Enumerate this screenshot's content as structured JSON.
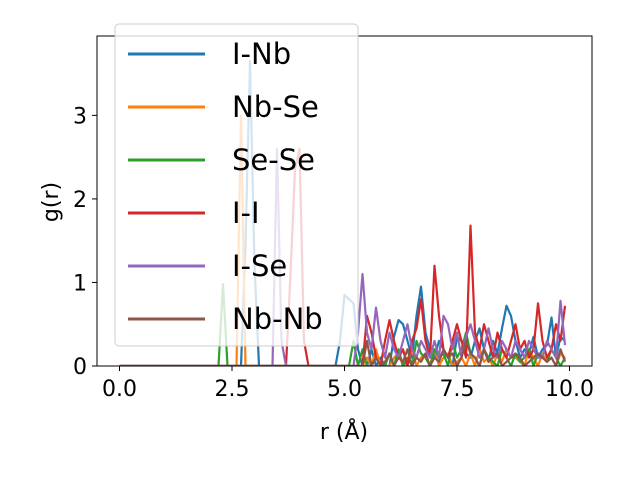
{
  "chart_data": {
    "type": "line",
    "title": "",
    "xlabel": "r (Å)",
    "ylabel": "g(r)",
    "xlim": [
      -0.5,
      10.5
    ],
    "ylim": [
      0,
      3.95
    ],
    "xticks": [
      "0.0",
      "2.5",
      "5.0",
      "7.5",
      "10.0"
    ],
    "xtick_values": [
      0,
      2.5,
      5,
      7.5,
      10
    ],
    "yticks": [
      "0",
      "1",
      "2",
      "3"
    ],
    "ytick_values": [
      0,
      1,
      2,
      3
    ],
    "grid": false,
    "legend_placement": "upper-left",
    "x": [
      0.0,
      0.1,
      0.2,
      0.3,
      0.4,
      0.5,
      0.6,
      0.7,
      0.8,
      0.9,
      1.0,
      1.1,
      1.2,
      1.3,
      1.4,
      1.5,
      1.6,
      1.7,
      1.8,
      1.9,
      2.0,
      2.1,
      2.2,
      2.3,
      2.4,
      2.5,
      2.6,
      2.7,
      2.8,
      2.9,
      3.0,
      3.1,
      3.2,
      3.3,
      3.4,
      3.5,
      3.6,
      3.7,
      3.8,
      3.9,
      4.0,
      4.1,
      4.2,
      4.3,
      4.4,
      4.5,
      4.6,
      4.7,
      4.8,
      4.9,
      5.0,
      5.1,
      5.2,
      5.3,
      5.4,
      5.5,
      5.6,
      5.7,
      5.8,
      5.9,
      6.0,
      6.1,
      6.2,
      6.3,
      6.4,
      6.5,
      6.6,
      6.7,
      6.8,
      6.9,
      7.0,
      7.1,
      7.2,
      7.3,
      7.4,
      7.5,
      7.6,
      7.7,
      7.8,
      7.9,
      8.0,
      8.1,
      8.2,
      8.3,
      8.4,
      8.5,
      8.6,
      8.7,
      8.8,
      8.9,
      9.0,
      9.1,
      9.2,
      9.3,
      9.4,
      9.5,
      9.6,
      9.7,
      9.8,
      9.9
    ],
    "series": [
      {
        "name": "I-Nb",
        "color": "#1f77b4",
        "values": [
          0,
          0,
          0,
          0,
          0,
          0,
          0,
          0,
          0,
          0,
          0,
          0,
          0,
          0,
          0,
          0,
          0,
          0,
          0,
          0,
          0,
          0,
          0,
          0,
          0,
          0,
          0,
          0,
          1.45,
          3.65,
          1.2,
          0,
          0,
          0,
          0,
          0,
          0,
          0,
          0,
          0,
          0,
          0,
          0,
          0,
          0,
          0,
          0,
          0,
          0,
          0.3,
          0.85,
          0.8,
          0.75,
          0.2,
          0,
          0,
          0.2,
          0,
          0.1,
          0,
          0,
          0.35,
          0.55,
          0.5,
          0.3,
          0.1,
          0.6,
          0.95,
          0.4,
          0.2,
          0.1,
          0.3,
          0.2,
          0.1,
          0,
          0.35,
          0.3,
          0.15,
          0.1,
          0.3,
          0.45,
          0.2,
          0.05,
          0.3,
          0.15,
          0.45,
          0.72,
          0.6,
          0.3,
          0.1,
          0.2,
          0.15,
          0.35,
          0.1,
          0.2,
          0.25,
          0.58,
          0.1,
          0.35,
          0.3
        ]
      },
      {
        "name": "Nb-Se",
        "color": "#ff7f0e",
        "values": [
          0,
          0,
          0,
          0,
          0,
          0,
          0,
          0,
          0,
          0,
          0,
          0,
          0,
          0,
          0,
          0,
          0,
          0,
          0,
          0,
          0,
          0,
          0,
          0,
          0,
          0,
          0,
          3.0,
          0,
          0,
          0,
          0,
          0,
          0,
          0,
          0,
          0,
          0,
          0,
          0,
          0,
          0,
          0,
          0,
          0,
          0,
          0,
          0,
          0,
          0,
          0,
          0,
          0,
          0,
          0,
          0.1,
          0,
          0.2,
          0,
          0,
          0,
          0.1,
          0.15,
          0,
          0.05,
          0.2,
          0,
          0.1,
          0.15,
          0,
          0.2,
          0,
          0.1,
          0.15,
          0,
          0.05,
          0.1,
          0,
          0.15,
          0,
          0.2,
          0.05,
          0.1,
          0,
          0.15,
          0.05,
          0.2,
          0.1,
          0.1,
          0.05,
          0,
          0.2,
          0.1,
          0,
          0.15,
          0.05,
          0.1,
          0,
          0.15,
          0.1
        ]
      },
      {
        "name": "Se-Se",
        "color": "#2ca02c",
        "values": [
          0,
          0,
          0,
          0,
          0,
          0,
          0,
          0,
          0,
          0,
          0,
          0,
          0,
          0,
          0,
          0,
          0,
          0,
          0,
          0,
          0,
          0,
          0,
          0.98,
          0,
          0,
          0,
          0,
          0,
          0,
          0,
          0,
          0,
          0,
          0,
          0,
          0,
          0,
          0,
          0,
          0,
          0,
          0,
          0,
          0,
          0,
          0,
          0,
          0,
          0,
          0,
          0,
          0.3,
          0,
          0.2,
          0,
          0,
          0.1,
          0,
          0,
          0.15,
          0,
          0.2,
          0,
          0.1,
          0,
          0.3,
          0.15,
          0.1,
          0,
          0.2,
          0.1,
          0.15,
          0,
          0.3,
          0.1,
          0.2,
          0.4,
          0.15,
          0.1,
          0,
          0.2,
          0.1,
          0.05,
          0,
          0.2,
          0.1,
          0,
          0.15,
          0.05,
          0.1,
          0.2,
          0,
          0.15,
          0.1,
          0.05,
          0.2,
          0.1,
          0,
          0.1
        ]
      },
      {
        "name": "I-I",
        "color": "#d62728",
        "values": [
          0,
          0,
          0,
          0,
          0,
          0,
          0,
          0,
          0,
          0,
          0,
          0,
          0,
          0,
          0,
          0,
          0,
          0,
          0,
          0,
          0,
          0,
          0,
          0,
          0,
          0,
          0,
          0,
          0,
          0,
          0,
          0,
          0,
          0,
          0,
          0,
          0,
          0,
          1.1,
          2.35,
          2.6,
          0.3,
          0,
          0,
          0,
          0,
          0,
          0,
          0,
          0,
          0,
          0,
          0,
          0,
          0,
          0.6,
          0.4,
          0.1,
          0,
          0.3,
          0.55,
          0.3,
          0.1,
          0.2,
          0,
          0.3,
          0.45,
          0.8,
          0.3,
          0.1,
          1.2,
          0.6,
          0.2,
          0.1,
          0.3,
          0.5,
          0.3,
          0.1,
          1.68,
          0.4,
          0.2,
          0.5,
          0.3,
          0.1,
          0.4,
          0.2,
          0.1,
          0.3,
          0.5,
          0.2,
          0.3,
          0.1,
          0.2,
          0.75,
          0.3,
          0.1,
          0.2,
          0.5,
          0.3,
          0.72
        ]
      },
      {
        "name": "I-Se",
        "color": "#9467bd",
        "values": [
          0,
          0,
          0,
          0,
          0,
          0,
          0,
          0,
          0,
          0,
          0,
          0,
          0,
          0,
          0,
          0,
          0,
          0,
          0,
          0,
          0,
          0,
          0,
          0,
          0,
          0,
          0,
          0,
          0,
          0,
          0,
          0,
          0,
          0,
          0,
          2.6,
          0.3,
          0,
          0,
          0,
          0,
          0,
          0,
          0,
          0,
          0,
          0,
          0,
          0,
          0,
          0,
          0,
          0,
          0.4,
          1.1,
          0.4,
          0.2,
          0.7,
          0.3,
          0.1,
          0.4,
          0.2,
          0.1,
          0.3,
          0.5,
          0.2,
          0.1,
          0.3,
          0.2,
          0.1,
          0.3,
          0.1,
          0.6,
          0.5,
          0.2,
          0.4,
          0.1,
          0.35,
          0.5,
          0.3,
          0.1,
          0.2,
          0.45,
          0.2,
          0.1,
          0.3,
          0.2,
          0.1,
          0.3,
          0.2,
          0.1,
          0.3,
          0.2,
          0.1,
          0.1,
          0.3,
          0.2,
          0.1,
          0.78,
          0.25
        ]
      },
      {
        "name": "Nb-Nb",
        "color": "#8c564b",
        "values": [
          0,
          0,
          0,
          0,
          0,
          0,
          0,
          0,
          0,
          0,
          0,
          0,
          0,
          0,
          0,
          0,
          0,
          0,
          0,
          0,
          0,
          0,
          0,
          0,
          0,
          0,
          0,
          0,
          0,
          0,
          0,
          0,
          0,
          0,
          0,
          0,
          0,
          0,
          0,
          0,
          0,
          0,
          0,
          0,
          0,
          0,
          0,
          0,
          0,
          0,
          0,
          0,
          0,
          0,
          0,
          0.3,
          0,
          0.1,
          0,
          0.05,
          0.15,
          0,
          0.1,
          0.05,
          0.2,
          0,
          0.1,
          0.05,
          0.15,
          0,
          0.1,
          0.05,
          0.2,
          0.1,
          0.15,
          0,
          0.1,
          0.3,
          0.15,
          0.1,
          0,
          0.2,
          0.05,
          0.1,
          0.15,
          0,
          0.05,
          0.1,
          0.15,
          0.1,
          0,
          0.05,
          0.1,
          0.15,
          0.1,
          0.05,
          0.1,
          0,
          0.2,
          0.05
        ]
      }
    ]
  }
}
